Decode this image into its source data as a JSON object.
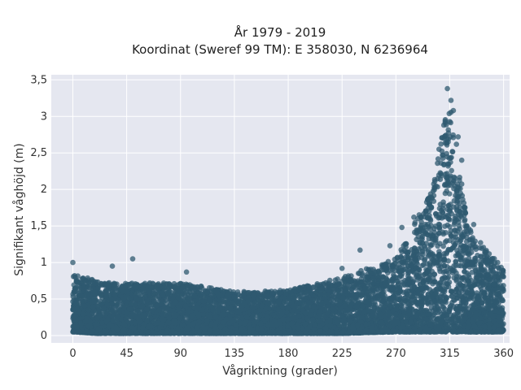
{
  "chart_data": {
    "type": "scatter",
    "title_line1": "År 1979 - 2019",
    "title_line2": "Koordinat (Sweref 99 TM): E 358030, N 6236964",
    "xlabel": "Vågriktning (grader)",
    "ylabel": "Signifikant våghöjd (m)",
    "xlim": [
      -18,
      365
    ],
    "ylim": [
      -0.1,
      3.57
    ],
    "x_ticks": [
      0,
      45,
      90,
      135,
      180,
      225,
      270,
      315,
      360
    ],
    "x_tick_labels": [
      "0",
      "45",
      "90",
      "135",
      "180",
      "225",
      "270",
      "315",
      "360"
    ],
    "y_ticks": [
      0,
      0.5,
      1,
      1.5,
      2,
      2.5,
      3,
      3.5
    ],
    "y_tick_labels": [
      "0",
      "0,5",
      "1",
      "1,5",
      "2",
      "2,5",
      "3",
      "3,5"
    ],
    "grid": true,
    "marker_color": "#2f5a70",
    "background_color": "#e5e7f0",
    "envelope": [
      {
        "x": 0,
        "y_min": 0.05,
        "y_max": 0.85
      },
      {
        "x": 20,
        "y_min": 0.03,
        "y_max": 0.75
      },
      {
        "x": 45,
        "y_min": 0.03,
        "y_max": 0.72
      },
      {
        "x": 90,
        "y_min": 0.03,
        "y_max": 0.72
      },
      {
        "x": 135,
        "y_min": 0.03,
        "y_max": 0.6
      },
      {
        "x": 180,
        "y_min": 0.03,
        "y_max": 0.62
      },
      {
        "x": 225,
        "y_min": 0.03,
        "y_max": 0.8
      },
      {
        "x": 270,
        "y_min": 0.05,
        "y_max": 1.05
      },
      {
        "x": 300,
        "y_min": 0.05,
        "y_max": 2.0
      },
      {
        "x": 315,
        "y_min": 0.05,
        "y_max": 3.3
      },
      {
        "x": 330,
        "y_min": 0.05,
        "y_max": 1.5
      },
      {
        "x": 360,
        "y_min": 0.05,
        "y_max": 0.9
      }
    ],
    "outliers": [
      {
        "x": 0,
        "y": 1.0
      },
      {
        "x": 50,
        "y": 1.05
      },
      {
        "x": 33,
        "y": 0.95
      },
      {
        "x": 95,
        "y": 0.87
      },
      {
        "x": 225,
        "y": 0.92
      },
      {
        "x": 240,
        "y": 1.17
      },
      {
        "x": 265,
        "y": 1.23
      },
      {
        "x": 275,
        "y": 1.48
      },
      {
        "x": 285,
        "y": 1.62
      },
      {
        "x": 313,
        "y": 3.38
      },
      {
        "x": 316,
        "y": 3.22
      },
      {
        "x": 318,
        "y": 3.08
      },
      {
        "x": 310,
        "y": 2.88
      },
      {
        "x": 322,
        "y": 2.72
      },
      {
        "x": 306,
        "y": 2.55
      },
      {
        "x": 325,
        "y": 2.4
      },
      {
        "x": 335,
        "y": 1.52
      },
      {
        "x": 340,
        "y": 1.2
      },
      {
        "x": 355,
        "y": 1.0
      }
    ]
  }
}
